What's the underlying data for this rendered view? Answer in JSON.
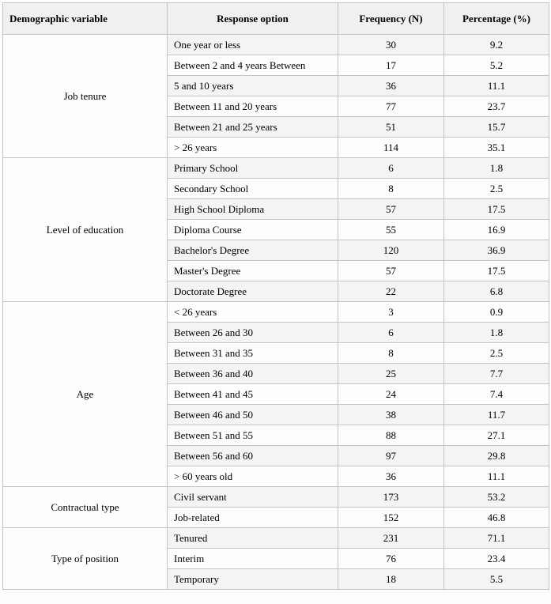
{
  "colors": {
    "header_background": "#f0f0f0",
    "row_stripe": "#f4f4f4",
    "border": "#c4c4c4"
  },
  "table": {
    "headers": [
      "Demographic variable",
      "Response option",
      "Frequency (N)",
      "Percentage (%)"
    ],
    "groups": [
      {
        "variable": "Job tenure",
        "rows": [
          {
            "option": "One year or less",
            "n": "30",
            "pct": "9.2"
          },
          {
            "option": "Between 2 and 4 years Between",
            "n": "17",
            "pct": "5.2",
            "merge_below": true
          },
          {
            "option": "5 and 10 years",
            "n": "36",
            "pct": "11.1"
          },
          {
            "option": "Between 11 and 20 years",
            "n": "77",
            "pct": "23.7"
          },
          {
            "option": "Between 21 and 25 years",
            "n": "51",
            "pct": "15.7"
          },
          {
            "option": "> 26 years",
            "n": "114",
            "pct": "35.1"
          }
        ]
      },
      {
        "variable": "Level of education",
        "rows": [
          {
            "option": "Primary School",
            "n": "6",
            "pct": "1.8"
          },
          {
            "option": "Secondary School",
            "n": "8",
            "pct": "2.5"
          },
          {
            "option": "High School Diploma",
            "n": "57",
            "pct": "17.5"
          },
          {
            "option": "Diploma Course",
            "n": "55",
            "pct": "16.9"
          },
          {
            "option": "Bachelor's Degree",
            "n": "120",
            "pct": "36.9"
          },
          {
            "option": "Master's Degree",
            "n": "57",
            "pct": "17.5"
          },
          {
            "option": "Doctorate Degree",
            "n": "22",
            "pct": "6.8"
          }
        ]
      },
      {
        "variable": "Age",
        "rows": [
          {
            "option": "< 26 years",
            "n": "3",
            "pct": "0.9"
          },
          {
            "option": "Between 26 and 30",
            "n": "6",
            "pct": "1.8"
          },
          {
            "option": "Between 31 and 35",
            "n": "8",
            "pct": "2.5"
          },
          {
            "option": "Between 36 and 40",
            "n": "25",
            "pct": "7.7"
          },
          {
            "option": "Between 41 and 45",
            "n": "24",
            "pct": "7.4"
          },
          {
            "option": "Between 46 and 50",
            "n": "38",
            "pct": "11.7"
          },
          {
            "option": "Between 51 and 55",
            "n": "88",
            "pct": "27.1"
          },
          {
            "option": "Between 56 and 60",
            "n": "97",
            "pct": "29.8"
          },
          {
            "option": "> 60 years old",
            "n": "36",
            "pct": "11.1"
          }
        ]
      },
      {
        "variable": "Contractual type",
        "rows": [
          {
            "option": "Civil servant",
            "n": "173",
            "pct": "53.2"
          },
          {
            "option": "Job-related",
            "n": "152",
            "pct": "46.8"
          }
        ]
      },
      {
        "variable": "Type of position",
        "rows": [
          {
            "option": "Tenured",
            "n": "231",
            "pct": "71.1"
          },
          {
            "option": "Interim",
            "n": "76",
            "pct": "23.4"
          },
          {
            "option": "Temporary",
            "n": "18",
            "pct": "5.5"
          }
        ]
      }
    ]
  }
}
